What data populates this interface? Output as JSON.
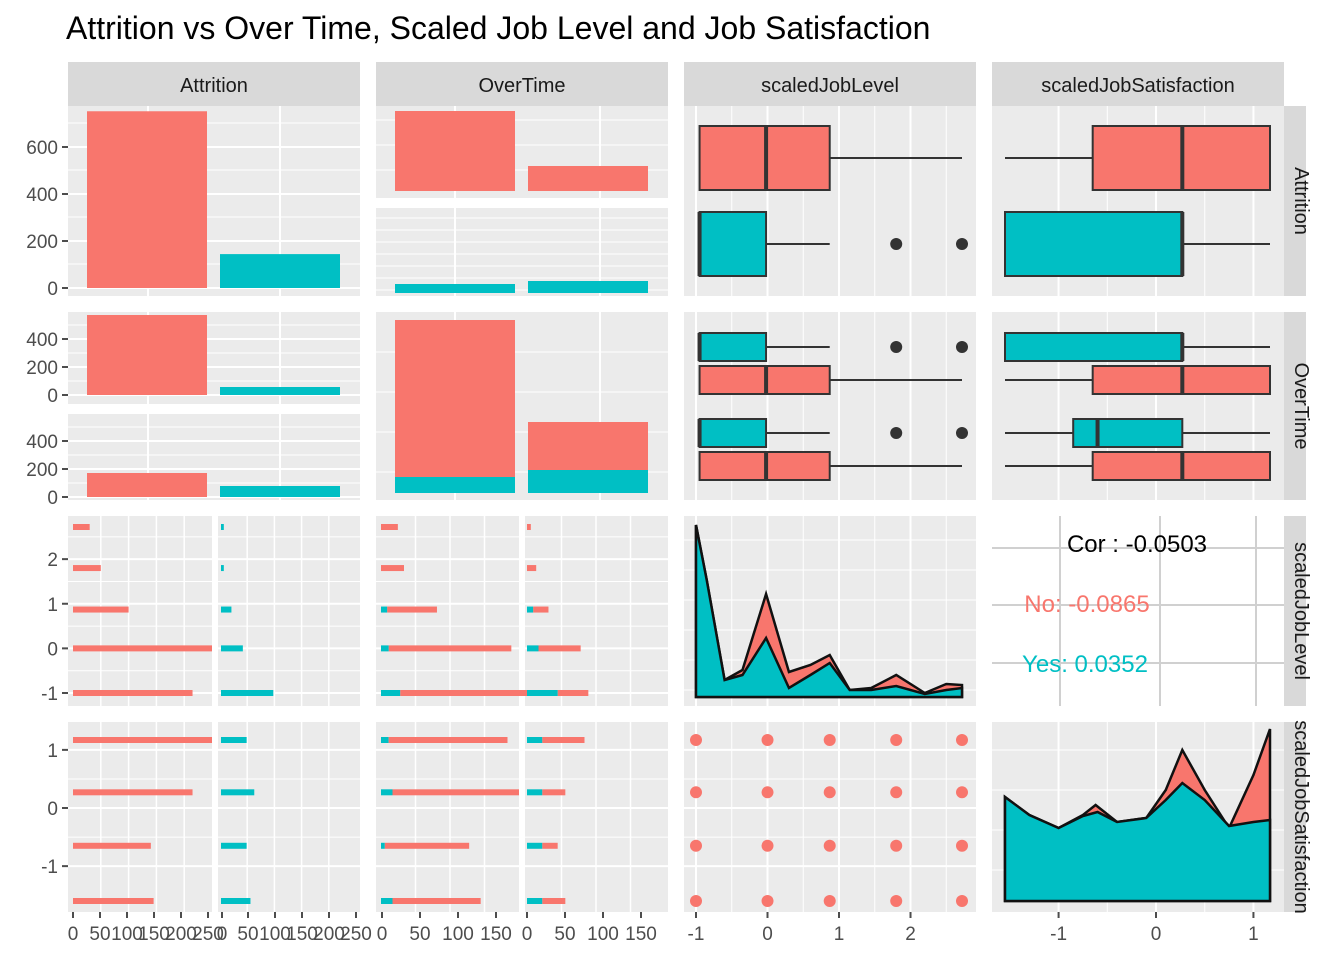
{
  "title": "Attrition vs Over Time, Scaled Job Level and Job Satisfaction",
  "colors": {
    "no": "#F8766D",
    "yes": "#00BFC4",
    "panel": "#EBEBEB",
    "strip": "#D9D9D9",
    "grid": "#FFFFFF",
    "tick": "#4D4D4D"
  },
  "chart_data": {
    "type": "pairs",
    "variables": [
      "Attrition",
      "OverTime",
      "scaledJobLevel",
      "scaledJobSatisfaction"
    ],
    "color_by": "Attrition",
    "groups": [
      "No",
      "Yes"
    ],
    "counts": {
      "attrition": {
        "No": 730,
        "Yes": 140
      },
      "overtime_by_attrition": {
        "No": {
          "No": 540,
          "Yes": 50
        },
        "Yes": {
          "No": 165,
          "Yes": 75
        }
      },
      "overtime_bars": {
        "No": {
          "No": 540,
          "Yes": 110
        },
        "Yes": {
          "No": 190,
          "Yes": 90
        }
      }
    },
    "job_level_values": [
      -1,
      0,
      0.87,
      1.8,
      2.72
    ],
    "job_satisfaction_values": [
      -1.6,
      -0.65,
      0.27,
      1.17
    ],
    "job_level_counts": {
      "No": [
        215,
        250,
        100,
        50,
        30
      ],
      "Yes": [
        70,
        30,
        15,
        5,
        5
      ]
    },
    "job_satisfaction_counts": {
      "No": [
        145,
        140,
        215,
        250
      ],
      "Yes": [
        40,
        35,
        45,
        35
      ]
    },
    "boxplots_joblevel": {
      "No": {
        "min": -0.95,
        "q1": -0.95,
        "median": -0.02,
        "q3": 0.87,
        "max": 2.72
      },
      "Yes": {
        "min": -0.95,
        "q1": -0.95,
        "median": -0.95,
        "q3": -0.02,
        "max": 0.87,
        "outliers": [
          1.8,
          2.72
        ]
      }
    },
    "boxplots_jobsat": {
      "No": {
        "min": -1.55,
        "q1": -0.65,
        "median": 0.27,
        "q3": 1.17,
        "max": 1.17
      },
      "Yes": {
        "min": -1.55,
        "q1": -1.55,
        "median": 0.27,
        "q3": 0.27,
        "max": 1.17
      }
    },
    "correlation": {
      "overall": "Cor : -0.0503",
      "no": "No: -0.0865",
      "yes": "Yes: 0.0352"
    },
    "axis_ticks": {
      "attrition_bottom": [
        "0",
        "50",
        "100",
        "150",
        "200",
        "250"
      ],
      "overtime_bottom": [
        "0",
        "50",
        "100",
        "150"
      ],
      "joblevel_bottom": [
        "-1",
        "0",
        "1",
        "2"
      ],
      "jobsat_bottom": [
        "-1",
        "0",
        "1"
      ],
      "attrition_left": [
        "0",
        "200",
        "400",
        "600"
      ],
      "overtime_left": [
        "0",
        "200",
        "400"
      ],
      "joblevel_left": [
        "-1",
        "0",
        "1",
        "2"
      ],
      "jobsat_left": [
        "-1",
        "0",
        "1"
      ]
    }
  }
}
